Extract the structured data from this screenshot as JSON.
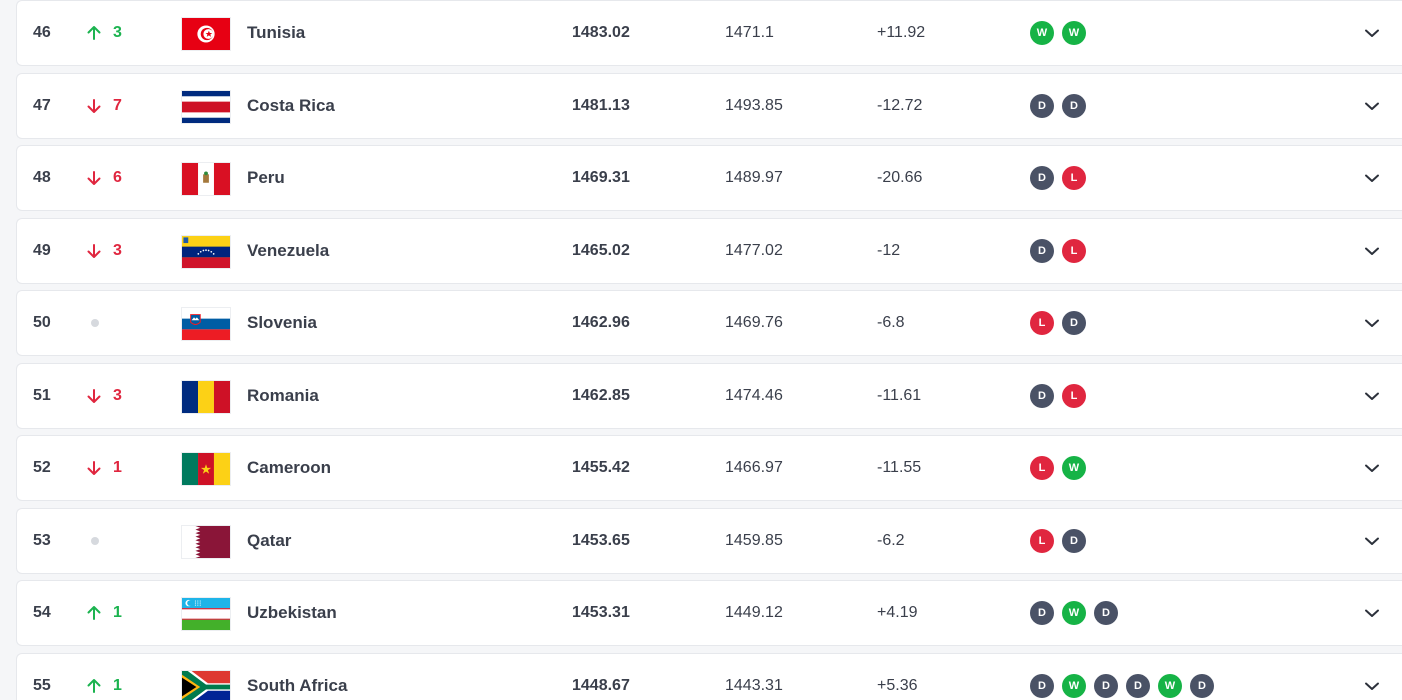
{
  "colors": {
    "up": "#1bb34f",
    "down": "#e0263f",
    "win": "#16b346",
    "draw": "#4a5266",
    "loss": "#e0263f"
  },
  "rows": [
    {
      "rank": "46",
      "dir": "up",
      "move": "3",
      "flag": "tunisia",
      "team": "Tunisia",
      "points": "1483.02",
      "previous": "1471.1",
      "diff": "+11.92",
      "form": [
        "W",
        "W"
      ]
    },
    {
      "rank": "47",
      "dir": "down",
      "move": "7",
      "flag": "costa-rica",
      "team": "Costa Rica",
      "points": "1481.13",
      "previous": "1493.85",
      "diff": "-12.72",
      "form": [
        "D",
        "D"
      ]
    },
    {
      "rank": "48",
      "dir": "down",
      "move": "6",
      "flag": "peru",
      "team": "Peru",
      "points": "1469.31",
      "previous": "1489.97",
      "diff": "-20.66",
      "form": [
        "D",
        "L"
      ]
    },
    {
      "rank": "49",
      "dir": "down",
      "move": "3",
      "flag": "venezuela",
      "team": "Venezuela",
      "points": "1465.02",
      "previous": "1477.02",
      "diff": "-12",
      "form": [
        "D",
        "L"
      ]
    },
    {
      "rank": "50",
      "dir": "none",
      "move": "",
      "flag": "slovenia",
      "team": "Slovenia",
      "points": "1462.96",
      "previous": "1469.76",
      "diff": "-6.8",
      "form": [
        "L",
        "D"
      ]
    },
    {
      "rank": "51",
      "dir": "down",
      "move": "3",
      "flag": "romania",
      "team": "Romania",
      "points": "1462.85",
      "previous": "1474.46",
      "diff": "-11.61",
      "form": [
        "D",
        "L"
      ]
    },
    {
      "rank": "52",
      "dir": "down",
      "move": "1",
      "flag": "cameroon",
      "team": "Cameroon",
      "points": "1455.42",
      "previous": "1466.97",
      "diff": "-11.55",
      "form": [
        "L",
        "W"
      ]
    },
    {
      "rank": "53",
      "dir": "none",
      "move": "",
      "flag": "qatar",
      "team": "Qatar",
      "points": "1453.65",
      "previous": "1459.85",
      "diff": "-6.2",
      "form": [
        "L",
        "D"
      ]
    },
    {
      "rank": "54",
      "dir": "up",
      "move": "1",
      "flag": "uzbekistan",
      "team": "Uzbekistan",
      "points": "1453.31",
      "previous": "1449.12",
      "diff": "+4.19",
      "form": [
        "D",
        "W",
        "D"
      ]
    },
    {
      "rank": "55",
      "dir": "up",
      "move": "1",
      "flag": "south-africa",
      "team": "South Africa",
      "points": "1448.67",
      "previous": "1443.31",
      "diff": "+5.36",
      "form": [
        "D",
        "W",
        "D",
        "D",
        "W",
        "D"
      ]
    }
  ]
}
